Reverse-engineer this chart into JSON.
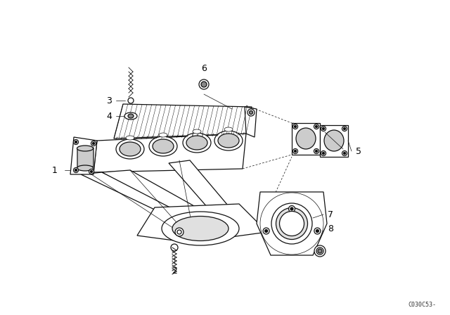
{
  "bg_color": "#ffffff",
  "line_color": "#111111",
  "fig_width": 6.4,
  "fig_height": 4.48,
  "dpi": 100,
  "watermark": "C030C53-",
  "lw_main": 0.9,
  "lw_thin": 0.5,
  "lw_hatch": 0.4
}
